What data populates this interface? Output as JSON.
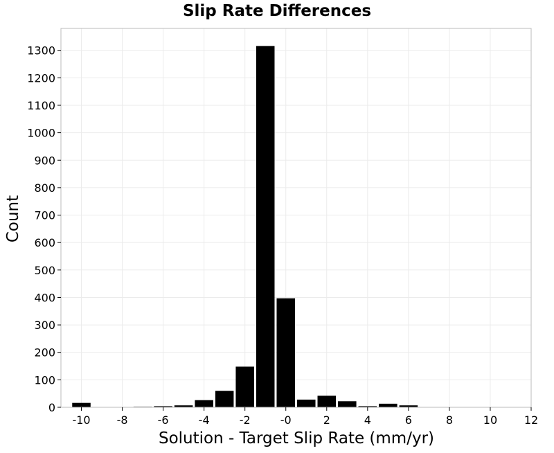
{
  "chart_data": {
    "type": "bar",
    "title": "Slip Rate Differences",
    "xlabel": "Solution - Target Slip Rate (mm/yr)",
    "ylabel": "Count",
    "xlim": [
      -11,
      12
    ],
    "ylim": [
      0,
      1380
    ],
    "bin_width": 1,
    "grid": true,
    "legend": "none",
    "x_ticks": [
      -10,
      -8,
      -6,
      -4,
      -2,
      0,
      2,
      4,
      6,
      8,
      10,
      12
    ],
    "x_tick_labels": [
      "-10",
      "-8",
      "-6",
      "-4",
      "-2",
      "-0",
      "2",
      "4",
      "6",
      "8",
      "10",
      "12"
    ],
    "y_ticks": [
      0,
      100,
      200,
      300,
      400,
      500,
      600,
      700,
      800,
      900,
      1000,
      1100,
      1200,
      1300
    ],
    "x": [
      -10,
      -9,
      -8,
      -7,
      -6,
      -5,
      -4,
      -3,
      -2,
      -1,
      0,
      1,
      2,
      3,
      4,
      5,
      6,
      7,
      8,
      9,
      10,
      11
    ],
    "values": [
      16,
      0,
      0,
      2,
      4,
      7,
      26,
      60,
      148,
      1316,
      397,
      28,
      42,
      22,
      4,
      13,
      7,
      0,
      0,
      0,
      0,
      0
    ],
    "bar_color": "#000000",
    "background_color": "#ffffff",
    "grid_color": "#ebebeb",
    "frame_color": "#bbbbbb"
  }
}
